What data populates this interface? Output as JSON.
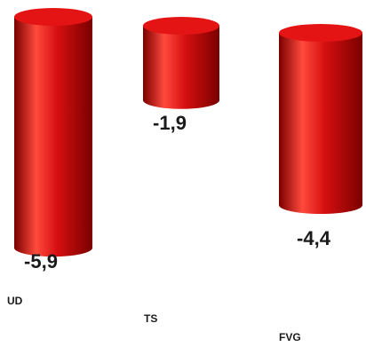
{
  "colors": {
    "bar_main": "#d60f10",
    "bar_dark": "#7a0000",
    "bar_top": "#e41414",
    "bar_highlight": "#ff4a3d",
    "text": "#1a1a1a"
  },
  "chart_data": {
    "type": "bar",
    "style": "3d-cylinder",
    "orientation": "vertical, hanging from top (negative values)",
    "categories": [
      "UD",
      "TS",
      "FVG"
    ],
    "values": [
      -5.9,
      -1.9,
      -4.4
    ],
    "value_labels": [
      "-5,9",
      "-1,9",
      "-4,4"
    ],
    "ylim": [
      -6.5,
      0
    ],
    "grid": false,
    "legend": "none"
  }
}
